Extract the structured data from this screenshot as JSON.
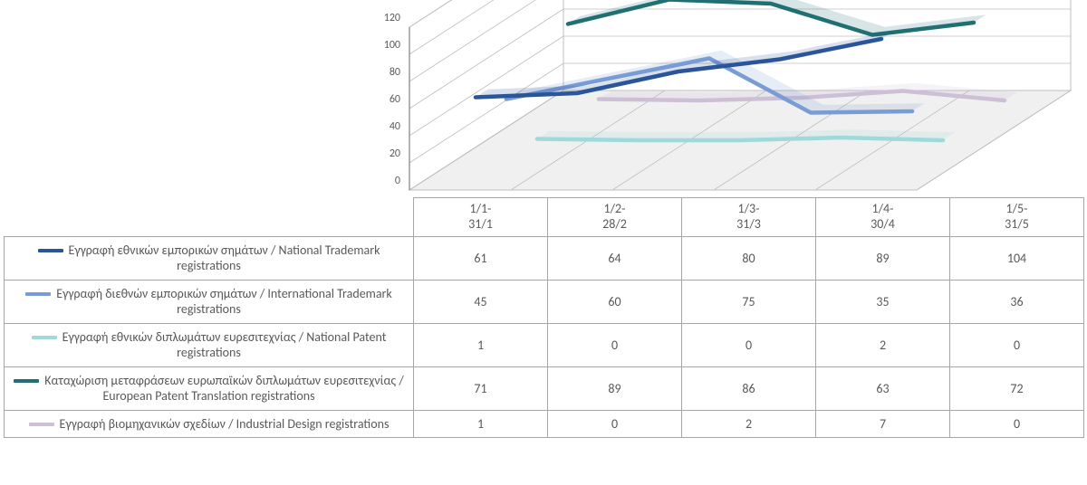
{
  "chart": {
    "type": "line-3d",
    "background_color": "#ffffff",
    "floor_color": "#f0f0f0",
    "grid_color": "#bfbfbf",
    "axis_color": "#808080",
    "y": {
      "min": 0,
      "max": 120,
      "step": 20
    },
    "categories": [
      "1/1-\n31/1",
      "1/2-\n28/2",
      "1/3-\n31/3",
      "1/4-\n30/4",
      "1/5-\n31/5"
    ],
    "series": [
      {
        "key": "s1",
        "label": "Εγγραφή εθνικών εμπορικών σημάτων / National Trademark registrations",
        "color": "#2a5599",
        "depth": 0,
        "values": [
          61,
          64,
          80,
          89,
          104
        ]
      },
      {
        "key": "s2",
        "label": "Εγγραφή διεθνών εμπορικών σημάτων / International Trademark registrations",
        "color": "#7a9cd4",
        "depth": 1,
        "values": [
          45,
          60,
          75,
          35,
          36
        ]
      },
      {
        "key": "s3",
        "label": "Εγγραφή εθνικών διπλωμάτων ευρεσιτεχνίας / National Patent registrations",
        "color": "#9fd9d9",
        "depth": 2,
        "values": [
          1,
          0,
          0,
          2,
          0
        ]
      },
      {
        "key": "s4",
        "label": "Καταχώριση μεταφράσεων ευρωπαϊκών διπλωμάτων ευρεσιτεχνίας / European Patent Translation registrations",
        "color": "#1f6f73",
        "depth": 3,
        "values": [
          71,
          89,
          86,
          63,
          72
        ]
      },
      {
        "key": "s5",
        "label": "Εγγραφή βιομηχανικών σχεδίων / Industrial Design registrations",
        "color": "#cdbfd6",
        "depth": 4,
        "values": [
          1,
          0,
          2,
          7,
          0
        ]
      }
    ],
    "line_width": 4.5,
    "tick_fontsize": 12,
    "tick_color": "#595959"
  }
}
